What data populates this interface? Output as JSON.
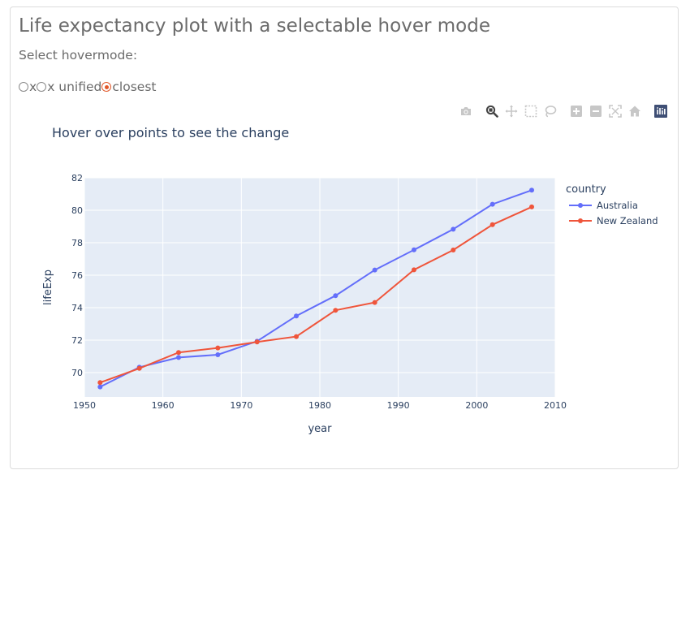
{
  "page": {
    "title": "Life expectancy plot with a selectable hover mode",
    "subtitle": "Select hovermode:"
  },
  "hovermode": {
    "options": [
      {
        "label": "x",
        "checked": false
      },
      {
        "label": "x unified",
        "checked": false
      },
      {
        "label": "closest",
        "checked": true
      }
    ]
  },
  "modebar": {
    "buttons": [
      "camera-icon",
      "zoom-icon",
      "pan-icon",
      "box-select-icon",
      "lasso-select-icon",
      "zoom-in-icon",
      "zoom-out-icon",
      "autoscale-icon",
      "reset-axes-icon",
      "plotly-logo-icon"
    ],
    "active": "zoom-icon"
  },
  "colors": {
    "plot_bg": "#e5ecf6",
    "grid": "#ffffff",
    "text": "#2a3f5f",
    "australia": "#636efa",
    "new_zealand": "#ef553b",
    "radio_checked": "#e1582a",
    "modebar_icon": "#c7c7c7",
    "modebar_active": "#444444",
    "logo_bg": "#3f4f75"
  },
  "chart_data": {
    "type": "line",
    "title": "Hover over points to see the change",
    "xlabel": "year",
    "ylabel": "lifeExp",
    "xlim": [
      1950,
      2010
    ],
    "ylim": [
      68.5,
      82
    ],
    "xticks": [
      1950,
      1960,
      1970,
      1980,
      1990,
      2000,
      2010
    ],
    "yticks": [
      70,
      72,
      74,
      76,
      78,
      80,
      82
    ],
    "grid": true,
    "markers": true,
    "legend": {
      "title": "country",
      "placement": "right"
    },
    "x": [
      1952,
      1957,
      1962,
      1967,
      1972,
      1977,
      1982,
      1987,
      1992,
      1997,
      2002,
      2007
    ],
    "series": [
      {
        "name": "Australia",
        "values": [
          69.12,
          70.33,
          70.93,
          71.1,
          71.93,
          73.49,
          74.74,
          76.32,
          77.56,
          78.83,
          80.37,
          81.235
        ]
      },
      {
        "name": "New Zealand",
        "values": [
          69.39,
          70.26,
          71.24,
          71.52,
          71.89,
          72.22,
          73.84,
          74.32,
          76.33,
          77.55,
          79.11,
          80.204
        ]
      }
    ]
  }
}
